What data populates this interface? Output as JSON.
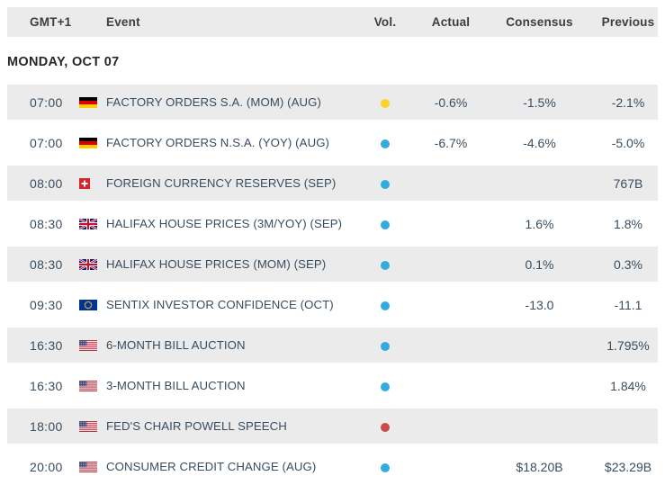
{
  "header": {
    "columns": [
      "GMT+1",
      "Event",
      "Vol.",
      "Actual",
      "Consensus",
      "Previous"
    ]
  },
  "day_heading": "MONDAY, OCT 07",
  "colors": {
    "row_stripe": "#ebebeb",
    "body_text": "#384d60",
    "header_text": "#3d3d3d",
    "dot_yellow": "#fcd228",
    "dot_blue": "#33abe0",
    "dot_red": "#c94a48"
  },
  "rows": [
    {
      "time": "07:00",
      "flag": "germany",
      "event": "FACTORY ORDERS S.A. (MOM) (AUG)",
      "volatility": "yellow",
      "actual": "-0.6%",
      "consensus": "-1.5%",
      "previous": "-2.1%"
    },
    {
      "time": "07:00",
      "flag": "germany",
      "event": "FACTORY ORDERS N.S.A. (YOY) (AUG)",
      "volatility": "blue",
      "actual": "-6.7%",
      "consensus": "-4.6%",
      "previous": "-5.0%"
    },
    {
      "time": "08:00",
      "flag": "switzerland",
      "event": "FOREIGN CURRENCY RESERVES (SEP)",
      "volatility": "blue",
      "actual": "",
      "consensus": "",
      "previous": "767B"
    },
    {
      "time": "08:30",
      "flag": "uk",
      "event": "HALIFAX HOUSE PRICES (3M/YOY) (SEP)",
      "volatility": "blue",
      "actual": "",
      "consensus": "1.6%",
      "previous": "1.8%"
    },
    {
      "time": "08:30",
      "flag": "uk",
      "event": "HALIFAX HOUSE PRICES (MOM) (SEP)",
      "volatility": "blue",
      "actual": "",
      "consensus": "0.1%",
      "previous": "0.3%"
    },
    {
      "time": "09:30",
      "flag": "eu",
      "event": "SENTIX INVESTOR CONFIDENCE (OCT)",
      "volatility": "blue",
      "actual": "",
      "consensus": "-13.0",
      "previous": "-11.1"
    },
    {
      "time": "16:30",
      "flag": "us",
      "event": "6-MONTH BILL AUCTION",
      "volatility": "blue",
      "actual": "",
      "consensus": "",
      "previous": "1.795%"
    },
    {
      "time": "16:30",
      "flag": "us",
      "event": "3-MONTH BILL AUCTION",
      "volatility": "blue",
      "actual": "",
      "consensus": "",
      "previous": "1.84%"
    },
    {
      "time": "18:00",
      "flag": "us",
      "event": "FED'S CHAIR POWELL SPEECH",
      "volatility": "red",
      "actual": "",
      "consensus": "",
      "previous": ""
    },
    {
      "time": "20:00",
      "flag": "us",
      "event": "CONSUMER CREDIT CHANGE (AUG)",
      "volatility": "blue",
      "actual": "",
      "consensus": "$18.20B",
      "previous": "$23.29B"
    }
  ]
}
